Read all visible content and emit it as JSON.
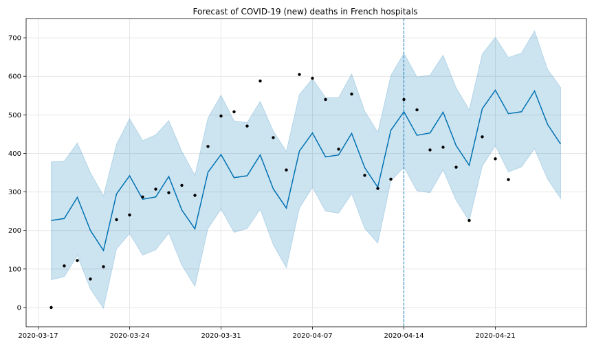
{
  "chart_data": {
    "type": "line",
    "title": "Forecast of COVID-19 (new) deaths in French hospitals",
    "xlabel": "",
    "ylabel": "",
    "ylim": [
      -50,
      750
    ],
    "grid": true,
    "forecast_start": "2020-04-14",
    "colors": {
      "forecast": "#0072B2",
      "interval": "#0072B2",
      "points": "#000000",
      "grid": "#e6e6e6"
    },
    "x_ticks": [
      "2020-03-17",
      "2020-03-24",
      "2020-03-31",
      "2020-04-07",
      "2020-04-14",
      "2020-04-21"
    ],
    "y_ticks": [
      0,
      100,
      200,
      300,
      400,
      500,
      600,
      700
    ],
    "dates": [
      "2020-03-18",
      "2020-03-19",
      "2020-03-20",
      "2020-03-21",
      "2020-03-22",
      "2020-03-23",
      "2020-03-24",
      "2020-03-25",
      "2020-03-26",
      "2020-03-27",
      "2020-03-28",
      "2020-03-29",
      "2020-03-30",
      "2020-03-31",
      "2020-04-01",
      "2020-04-02",
      "2020-04-03",
      "2020-04-04",
      "2020-04-05",
      "2020-04-06",
      "2020-04-07",
      "2020-04-08",
      "2020-04-09",
      "2020-04-10",
      "2020-04-11",
      "2020-04-12",
      "2020-04-13",
      "2020-04-14",
      "2020-04-15",
      "2020-04-16",
      "2020-04-17",
      "2020-04-18",
      "2020-04-19",
      "2020-04-20",
      "2020-04-21",
      "2020-04-22",
      "2020-04-23",
      "2020-04-24",
      "2020-04-25",
      "2020-04-26"
    ],
    "forecast": [
      226,
      231,
      286,
      200,
      148,
      295,
      342,
      281,
      287,
      340,
      253,
      204,
      351,
      397,
      337,
      342,
      396,
      308,
      258,
      406,
      453,
      391,
      396,
      452,
      363,
      312,
      460,
      508,
      447,
      453,
      507,
      420,
      369,
      516,
      564,
      503,
      508,
      562,
      475,
      424
    ],
    "upper": [
      378,
      380,
      427,
      350,
      290,
      424,
      490,
      433,
      448,
      485,
      405,
      343,
      492,
      551,
      484,
      480,
      535,
      458,
      405,
      553,
      594,
      545,
      545,
      606,
      510,
      455,
      602,
      660,
      598,
      603,
      655,
      570,
      513,
      658,
      701,
      649,
      660,
      718,
      618,
      571
    ],
    "lower": [
      72,
      80,
      135,
      48,
      -2,
      152,
      192,
      136,
      150,
      193,
      110,
      55,
      205,
      255,
      195,
      205,
      255,
      163,
      103,
      258,
      312,
      250,
      245,
      295,
      205,
      167,
      328,
      364,
      303,
      298,
      357,
      278,
      225,
      367,
      420,
      352,
      365,
      412,
      333,
      283
    ],
    "actual": [
      0,
      108,
      122,
      74,
      106,
      228,
      240,
      287,
      307,
      298,
      317,
      291,
      418,
      497,
      508,
      471,
      588,
      441,
      357,
      605,
      595,
      540,
      411,
      554,
      343,
      309,
      333,
      540,
      513,
      409,
      416,
      364,
      226,
      443,
      386,
      332
    ]
  }
}
